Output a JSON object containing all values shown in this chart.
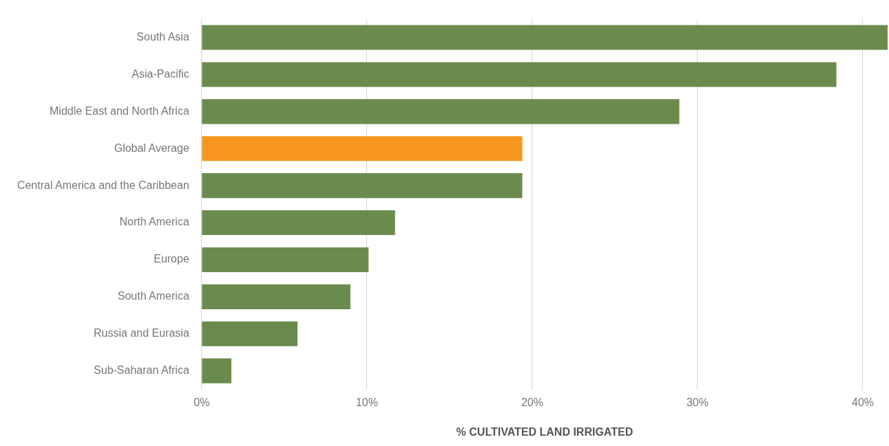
{
  "chart_data": {
    "type": "bar",
    "orientation": "horizontal",
    "xlabel": "% CULTIVATED LAND IRRIGATED",
    "categories": [
      "South Asia",
      "Asia-Pacific",
      "Middle East and North Africa",
      "Global Average",
      "Central America and the Caribbean",
      "North America",
      "Europe",
      "South America",
      "Russia and Eurasia",
      "Sub-Saharan Africa"
    ],
    "values": [
      41.5,
      38.4,
      28.9,
      19.4,
      19.4,
      11.7,
      10.1,
      9.0,
      5.8,
      1.8
    ],
    "colors": [
      "#6b8b4e",
      "#6b8b4e",
      "#6b8b4e",
      "#f7971f",
      "#6b8b4e",
      "#6b8b4e",
      "#6b8b4e",
      "#6b8b4e",
      "#6b8b4e",
      "#6b8b4e"
    ],
    "xlim": [
      0,
      41.5
    ],
    "xticks": [
      {
        "value": 0,
        "label": "0%"
      },
      {
        "value": 10,
        "label": "10%"
      },
      {
        "value": 20,
        "label": "20%"
      },
      {
        "value": 30,
        "label": "30%"
      },
      {
        "value": 40,
        "label": "40%"
      }
    ],
    "grid": "x",
    "legend": false
  }
}
